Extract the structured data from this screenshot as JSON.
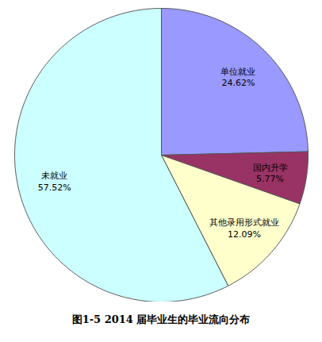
{
  "chart_data": {
    "type": "pie",
    "title": "图1-5 2014 届毕业生的毕业流向分布",
    "categories": [
      "单位就业",
      "国内升学",
      "其他录用形式就业",
      "未就业"
    ],
    "values": [
      24.62,
      5.77,
      12.09,
      57.52
    ],
    "value_labels": [
      "24.62%",
      "5.77%",
      "12.09%",
      "57.52%"
    ],
    "colors": [
      "#9999ff",
      "#993366",
      "#ffffcc",
      "#ccffff"
    ],
    "data_labels": true
  }
}
